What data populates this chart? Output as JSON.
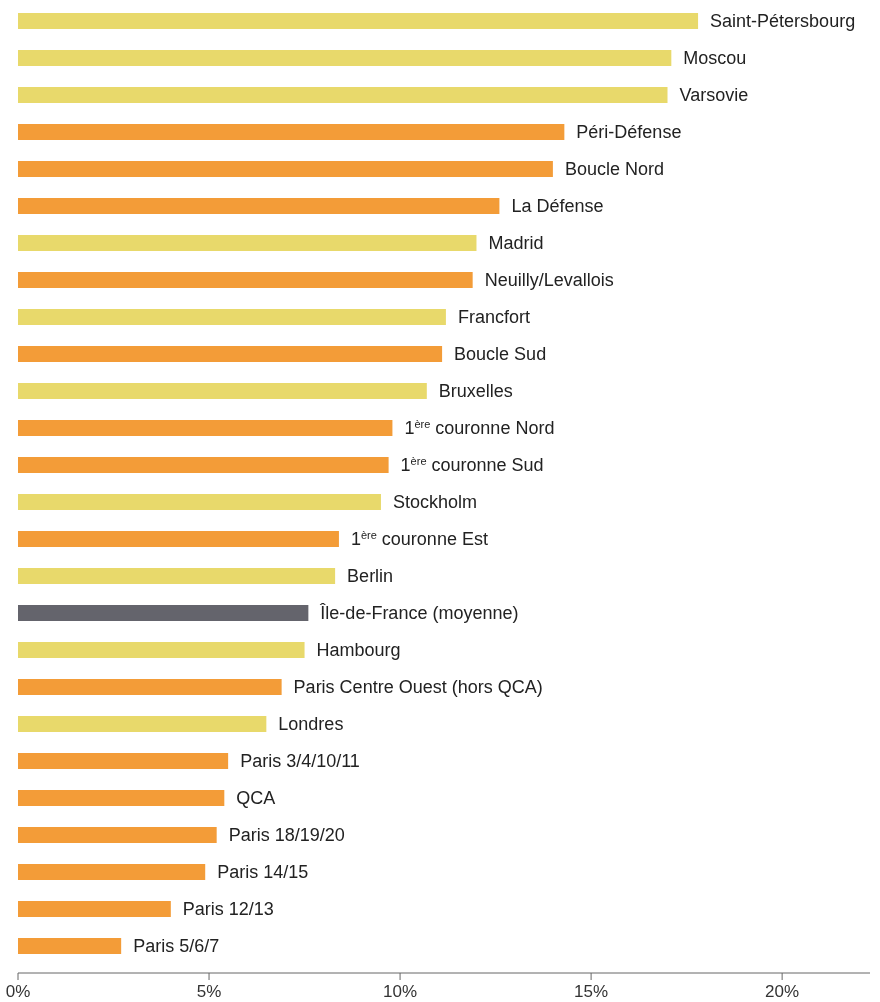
{
  "chart_data": {
    "type": "bar",
    "orientation": "horizontal",
    "categories": [
      "Saint-Pétersbourg",
      "Moscou",
      "Varsovie",
      "Péri-Défense",
      "Boucle Nord",
      "La Défense",
      "Madrid",
      "Neuilly/Levallois",
      "Francfort",
      "Boucle Sud",
      "Bruxelles",
      "1$^{ère}$ couronne Nord",
      "1$^{ère}$ couronne Sud",
      "Stockholm",
      "1$^{ère}$ couronne Est",
      "Berlin",
      "Île-de-France (moyenne)",
      "Hambourg",
      "Paris Centre Ouest (hors QCA)",
      "Londres",
      "Paris 3/4/10/11",
      "QCA",
      "Paris 18/19/20",
      "Paris 14/15",
      "Paris 12/13",
      "Paris 5/6/7"
    ],
    "values": [
      17.8,
      17.1,
      17.0,
      14.3,
      14.0,
      12.6,
      12.0,
      11.9,
      11.2,
      11.1,
      10.7,
      9.8,
      9.7,
      9.5,
      8.4,
      8.3,
      7.6,
      7.5,
      6.9,
      6.5,
      5.5,
      5.4,
      5.2,
      4.9,
      4.0,
      2.7
    ],
    "colors": [
      "#e8d96b",
      "#e8d96b",
      "#e8d96b",
      "#f39c38",
      "#f39c38",
      "#f39c38",
      "#e8d96b",
      "#f39c38",
      "#e8d96b",
      "#f39c38",
      "#e8d96b",
      "#f39c38",
      "#f39c38",
      "#e8d96b",
      "#f39c38",
      "#e8d96b",
      "#64646c",
      "#e8d96b",
      "#f39c38",
      "#e8d96b",
      "#f39c38",
      "#f39c38",
      "#f39c38",
      "#f39c38",
      "#f39c38",
      "#f39c38"
    ],
    "xlim": [
      0,
      22.3
    ],
    "xticks": [
      {
        "value": 0,
        "label": "0%"
      },
      {
        "value": 5,
        "label": "5%"
      },
      {
        "value": 10,
        "label": "10%"
      },
      {
        "value": 15,
        "label": "15%"
      },
      {
        "value": 20,
        "label": "20%"
      }
    ],
    "grid": false
  }
}
